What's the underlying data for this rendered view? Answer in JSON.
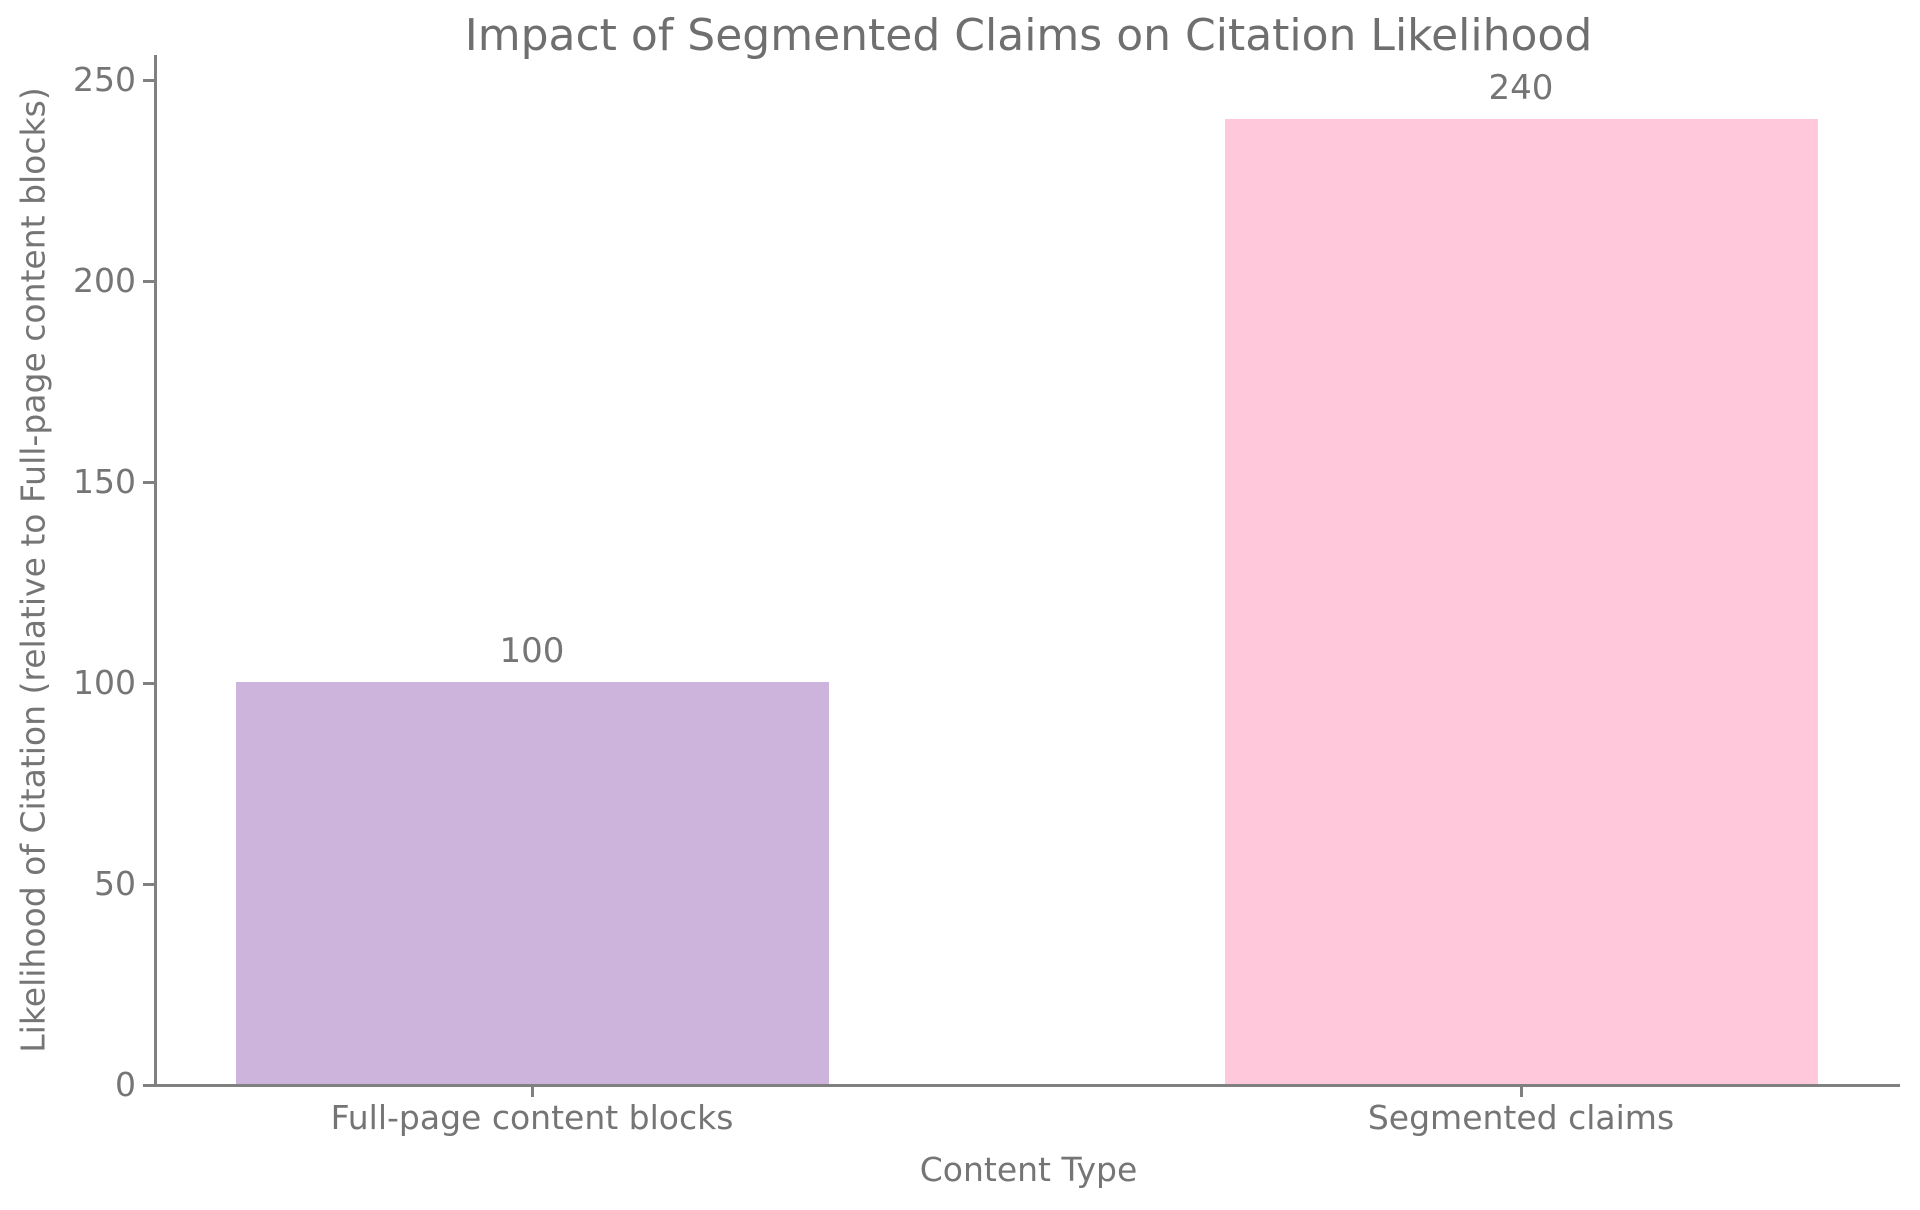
{
  "chart_data": {
    "type": "bar",
    "title": "Impact of Segmented Claims on Citation Likelihood",
    "xlabel": "Content Type",
    "ylabel": "Likelihood of Citation (relative to Full-page content blocks)",
    "categories": [
      "Full-page content blocks",
      "Segmented claims"
    ],
    "values": [
      100,
      240
    ],
    "bar_value_labels": [
      "100",
      "240"
    ],
    "bar_colors": [
      "#ccb4dc",
      "#ffc9db"
    ],
    "yticks": [
      0,
      50,
      100,
      150,
      200,
      250
    ],
    "ylim": [
      0,
      256
    ],
    "grid": false,
    "legend_position": "none",
    "colors": {
      "text": "#757575",
      "title_text": "#6f6f6f",
      "axis": "#808080",
      "background": "#ffffff"
    }
  }
}
